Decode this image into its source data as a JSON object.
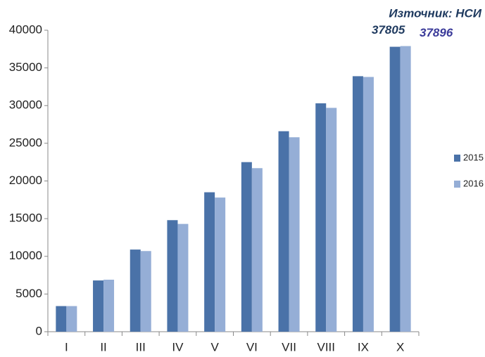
{
  "chart_data": {
    "type": "bar",
    "annotation": "Източник: НСИ",
    "categories": [
      "I",
      "II",
      "III",
      "IV",
      "V",
      "VI",
      "VII",
      "VIII",
      "IX",
      "X"
    ],
    "series": [
      {
        "name": "2015",
        "color": "#4a72a8",
        "values": [
          3400,
          6800,
          10900,
          14800,
          18500,
          22500,
          26600,
          30300,
          33900,
          37805
        ]
      },
      {
        "name": "2016",
        "color": "#95aed6",
        "values": [
          3400,
          6900,
          10700,
          14300,
          17800,
          21700,
          25800,
          29700,
          33800,
          37896
        ]
      }
    ],
    "ylim": [
      0,
      40000
    ],
    "yticks": [
      0,
      5000,
      10000,
      15000,
      20000,
      25000,
      30000,
      35000,
      40000
    ],
    "grid": false,
    "legend": "right"
  }
}
